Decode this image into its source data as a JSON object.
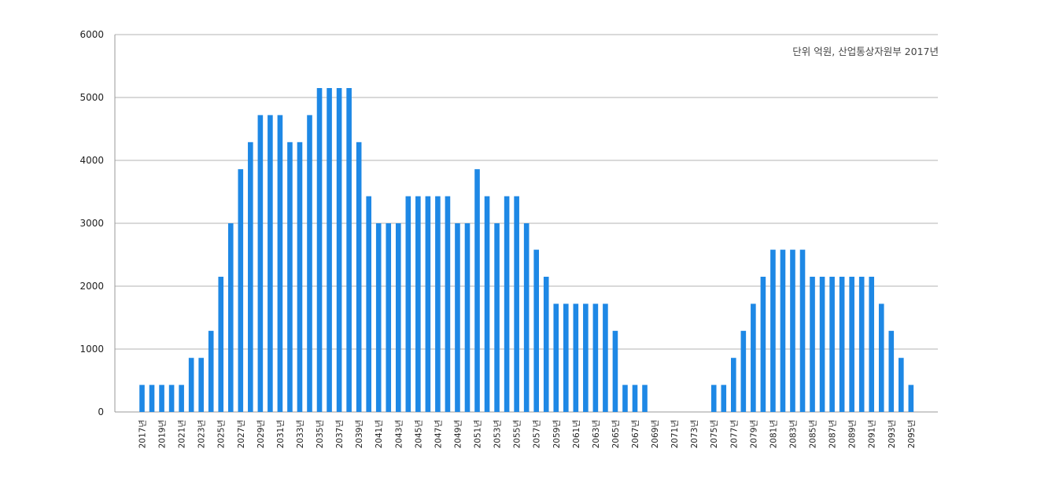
{
  "chart_data": {
    "type": "bar",
    "annotation": "단위 억원, 산업통상자원부 2017년",
    "categories": [
      "2017년",
      "2018년",
      "2019년",
      "2020년",
      "2021년",
      "2022년",
      "2023년",
      "2024년",
      "2025년",
      "2026년",
      "2027년",
      "2028년",
      "2029년",
      "2030년",
      "2031년",
      "2032년",
      "2033년",
      "2034년",
      "2035년",
      "2036년",
      "2037년",
      "2038년",
      "2039년",
      "2040년",
      "2041년",
      "2042년",
      "2043년",
      "2044년",
      "2045년",
      "2046년",
      "2047년",
      "2048년",
      "2049년",
      "2050년",
      "2051년",
      "2052년",
      "2053년",
      "2054년",
      "2055년",
      "2056년",
      "2057년",
      "2058년",
      "2059년",
      "2060년",
      "2061년",
      "2062년",
      "2063년",
      "2064년",
      "2065년",
      "2066년",
      "2067년",
      "2068년",
      "2069년",
      "2070년",
      "2071년",
      "2072년",
      "2073년",
      "2074년",
      "2075년",
      "2076년",
      "2077년",
      "2078년",
      "2079년",
      "2080년",
      "2081년",
      "2082년",
      "2083년",
      "2084년",
      "2085년",
      "2086년",
      "2087년",
      "2088년",
      "2089년",
      "2090년",
      "2091년",
      "2092년",
      "2093년",
      "2094년",
      "2095년"
    ],
    "tick_labels": [
      "2017년",
      "2019년",
      "2021년",
      "2023년",
      "2025년",
      "2027년",
      "2029년",
      "2031년",
      "2033년",
      "2035년",
      "2037년",
      "2039년",
      "2041년",
      "2043년",
      "2045년",
      "2047년",
      "2049년",
      "2051년",
      "2053년",
      "2055년",
      "2057년",
      "2059년",
      "2061년",
      "2063년",
      "2065년",
      "2067년",
      "2069년",
      "2071년",
      "2073년",
      "2075년",
      "2077년",
      "2079년",
      "2081년",
      "2083년",
      "2085년",
      "2087년",
      "2089년",
      "2091년",
      "2093년",
      "2095년"
    ],
    "values": [
      430,
      430,
      430,
      430,
      430,
      860,
      860,
      1290,
      2150,
      3000,
      3860,
      4290,
      4720,
      4720,
      4720,
      4290,
      4290,
      4720,
      5150,
      5150,
      5150,
      5150,
      4290,
      3430,
      3000,
      3000,
      3000,
      3430,
      3430,
      3430,
      3430,
      3430,
      3000,
      3000,
      3860,
      3430,
      3000,
      3430,
      3430,
      3000,
      2580,
      2150,
      1720,
      1720,
      1720,
      1720,
      1720,
      1720,
      1290,
      430,
      430,
      430,
      0,
      0,
      0,
      0,
      0,
      0,
      430,
      430,
      860,
      1290,
      1720,
      2150,
      2580,
      2580,
      2580,
      2580,
      2150,
      2150,
      2150,
      2150,
      2150,
      2150,
      2150,
      1720,
      1290,
      860,
      430
    ],
    "ylim": [
      0,
      6000
    ],
    "yticks": [
      0,
      1000,
      2000,
      3000,
      4000,
      5000,
      6000
    ],
    "bar_color": "#1e88e5",
    "grid_color": "#b3b3b3",
    "axis_color": "#999999",
    "grid": true
  }
}
